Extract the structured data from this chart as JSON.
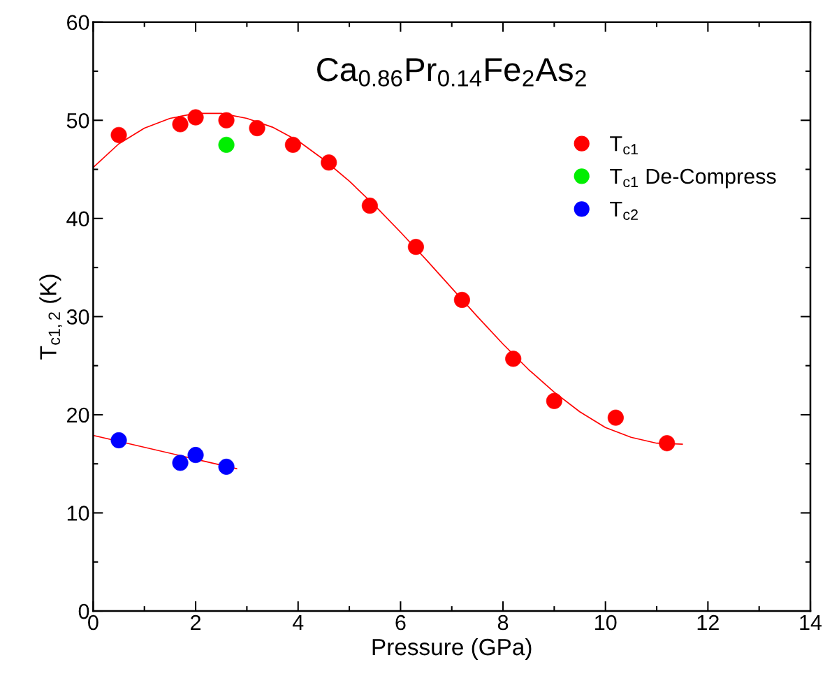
{
  "chart_data": {
    "type": "scatter",
    "title": "Ca$_{0.86}$Pr$_{0.14}$Fe$_{2}$As$_{2}$",
    "xlabel": "Pressure (GPa)",
    "ylabel": "T$_{c1,2}$ (K)",
    "xlim": [
      0,
      14
    ],
    "xticks": [
      0,
      2,
      4,
      6,
      8,
      10,
      12,
      14
    ],
    "ylim": [
      0,
      60
    ],
    "yticks": [
      0,
      10,
      20,
      30,
      40,
      50,
      60
    ],
    "grid": false,
    "legend": "top right",
    "marker": "circle",
    "series": [
      {
        "name": "T$_{c1}$",
        "color": "#ff0000",
        "x": [
          0.5,
          1.7,
          2.0,
          2.6,
          3.2,
          3.9,
          4.6,
          5.4,
          6.3,
          7.2,
          8.2,
          9.0,
          10.2,
          11.2
        ],
        "values": [
          48.5,
          49.6,
          50.3,
          50.0,
          49.2,
          47.5,
          45.7,
          41.3,
          37.1,
          31.7,
          25.7,
          21.4,
          19.7,
          17.1
        ]
      },
      {
        "name": "T$_{c1}$ De-Compress",
        "color": "#00ee00",
        "x": [
          2.6
        ],
        "values": [
          47.5
        ]
      },
      {
        "name": "T$_{c2}$",
        "color": "#0000ff",
        "x": [
          0.5,
          1.7,
          2.0,
          2.6
        ],
        "values": [
          17.4,
          15.1,
          15.9,
          14.7
        ]
      },
      {
        "type": "line",
        "marker": "none",
        "color": "#ff0000",
        "x": [
          0,
          0.5,
          1,
          1.5,
          2,
          2.5,
          3,
          3.5,
          4,
          4.5,
          5,
          5.5,
          6,
          6.5,
          7,
          7.5,
          8,
          8.5,
          9,
          9.5,
          10,
          10.5,
          11,
          11.5
        ],
        "values": [
          45.2,
          47.6,
          49.2,
          50.2,
          50.7,
          50.7,
          50.2,
          49.3,
          47.9,
          46.0,
          43.8,
          41.3,
          38.6,
          35.8,
          32.9,
          30.0,
          27.2,
          24.6,
          22.3,
          20.3,
          18.7,
          17.7,
          17.1,
          17.0
        ]
      },
      {
        "type": "line",
        "marker": "none",
        "color": "#ff0000",
        "x": [
          0,
          2.8
        ],
        "values": [
          17.9,
          14.5
        ]
      }
    ]
  }
}
